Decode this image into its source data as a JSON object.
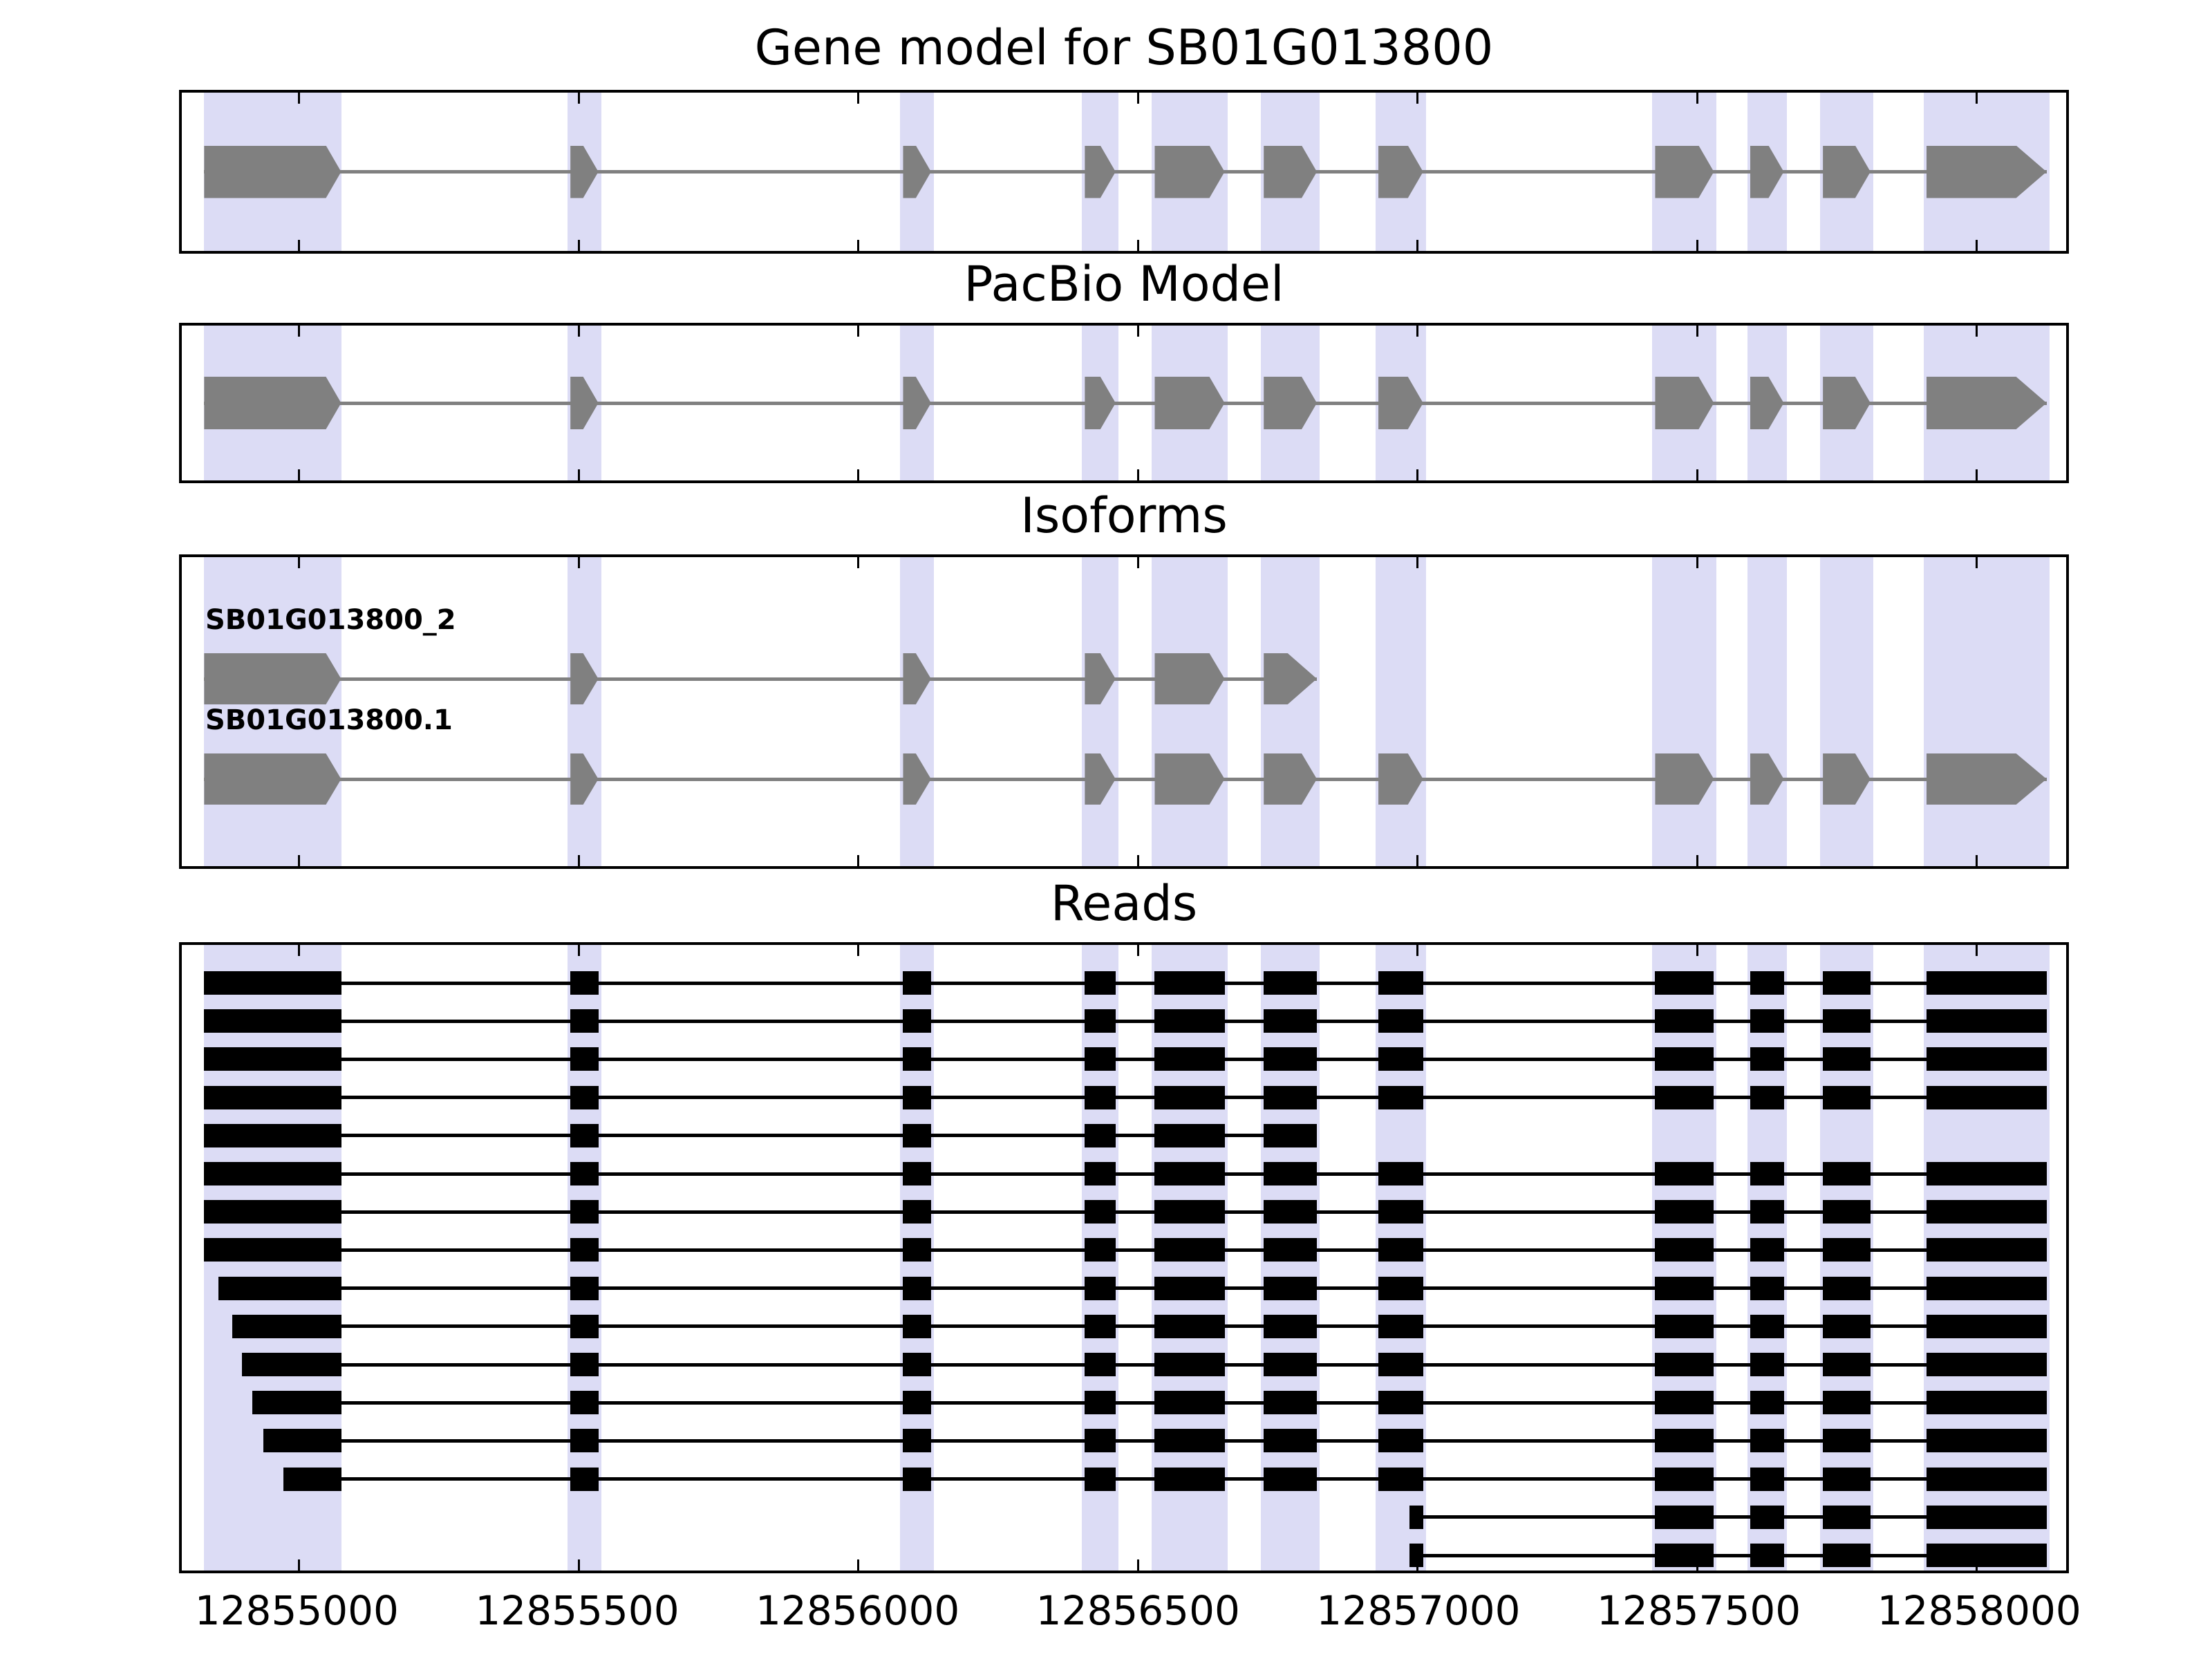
{
  "chart_data": {
    "type": "gene-structure-tracks",
    "gene_id": "SB01G013800",
    "strand": "+",
    "panels": [
      {
        "id": "gene_model",
        "title": "Gene model for SB01G013800"
      },
      {
        "id": "pacbio",
        "title": "PacBio Model"
      },
      {
        "id": "isoforms",
        "title": "Isoforms"
      },
      {
        "id": "reads",
        "title": "Reads"
      }
    ],
    "x_axis": {
      "min": 12854790,
      "max": 12858160,
      "ticks": [
        12855000,
        12855500,
        12856000,
        12856500,
        12857000,
        12857500,
        12858000
      ],
      "tick_labels": [
        "12855000",
        "12855500",
        "12856000",
        "12856500",
        "12857000",
        "12857500",
        "12858000"
      ]
    },
    "highlight_regions": [
      [
        12854830,
        12855075
      ],
      [
        12855480,
        12855540
      ],
      [
        12856075,
        12856135
      ],
      [
        12856400,
        12856465
      ],
      [
        12856525,
        12856660
      ],
      [
        12856720,
        12856825
      ],
      [
        12856925,
        12857015
      ],
      [
        12857420,
        12857535
      ],
      [
        12857590,
        12857660
      ],
      [
        12857720,
        12857815
      ],
      [
        12857905,
        12858130
      ]
    ],
    "gene_model_exons": [
      [
        12854830,
        12855075
      ],
      [
        12855485,
        12855535
      ],
      [
        12856080,
        12856130
      ],
      [
        12856405,
        12856460
      ],
      [
        12856530,
        12856655
      ],
      [
        12856725,
        12856820
      ],
      [
        12856930,
        12857010
      ],
      [
        12857425,
        12857530
      ],
      [
        12857595,
        12857655
      ],
      [
        12857725,
        12857810
      ],
      [
        12857910,
        12858125
      ]
    ],
    "pacbio_exons": [
      [
        12854830,
        12855075
      ],
      [
        12855485,
        12855535
      ],
      [
        12856080,
        12856130
      ],
      [
        12856405,
        12856460
      ],
      [
        12856530,
        12856655
      ],
      [
        12856725,
        12856820
      ],
      [
        12856930,
        12857010
      ],
      [
        12857425,
        12857530
      ],
      [
        12857595,
        12857655
      ],
      [
        12857725,
        12857810
      ],
      [
        12857910,
        12858125
      ]
    ],
    "isoforms": [
      {
        "label": "SB01G013800_2",
        "exons": [
          [
            12854830,
            12855075
          ],
          [
            12855485,
            12855535
          ],
          [
            12856080,
            12856130
          ],
          [
            12856405,
            12856460
          ],
          [
            12856530,
            12856655
          ],
          [
            12856725,
            12856820
          ]
        ]
      },
      {
        "label": "SB01G013800.1",
        "exons": [
          [
            12854830,
            12855075
          ],
          [
            12855485,
            12855535
          ],
          [
            12856080,
            12856130
          ],
          [
            12856405,
            12856460
          ],
          [
            12856530,
            12856655
          ],
          [
            12856725,
            12856820
          ],
          [
            12856930,
            12857010
          ],
          [
            12857425,
            12857530
          ],
          [
            12857595,
            12857655
          ],
          [
            12857725,
            12857810
          ],
          [
            12857910,
            12858125
          ]
        ]
      }
    ],
    "reads": [
      {
        "start": 12854830,
        "end": 12858125
      },
      {
        "start": 12854830,
        "end": 12858125
      },
      {
        "start": 12854830,
        "end": 12858125
      },
      {
        "start": 12854830,
        "end": 12858125
      },
      {
        "start": 12854830,
        "end": 12856820
      },
      {
        "start": 12854830,
        "end": 12858125
      },
      {
        "start": 12854830,
        "end": 12858125
      },
      {
        "start": 12854830,
        "end": 12858125
      },
      {
        "start": 12854855,
        "end": 12858125
      },
      {
        "start": 12854880,
        "end": 12858125
      },
      {
        "start": 12854898,
        "end": 12858125
      },
      {
        "start": 12854916,
        "end": 12858125
      },
      {
        "start": 12854936,
        "end": 12858125
      },
      {
        "start": 12854972,
        "end": 12858125
      },
      {
        "start": 12856985,
        "end": 12858125
      },
      {
        "start": 12856985,
        "end": 12858125
      }
    ],
    "colors": {
      "feature_fill": "#808080",
      "read_fill": "#000000",
      "highlight_fill": "#dcdcf5",
      "border": "#000000",
      "background": "#ffffff",
      "text": "#000000"
    },
    "legend": "none",
    "grid": false
  }
}
